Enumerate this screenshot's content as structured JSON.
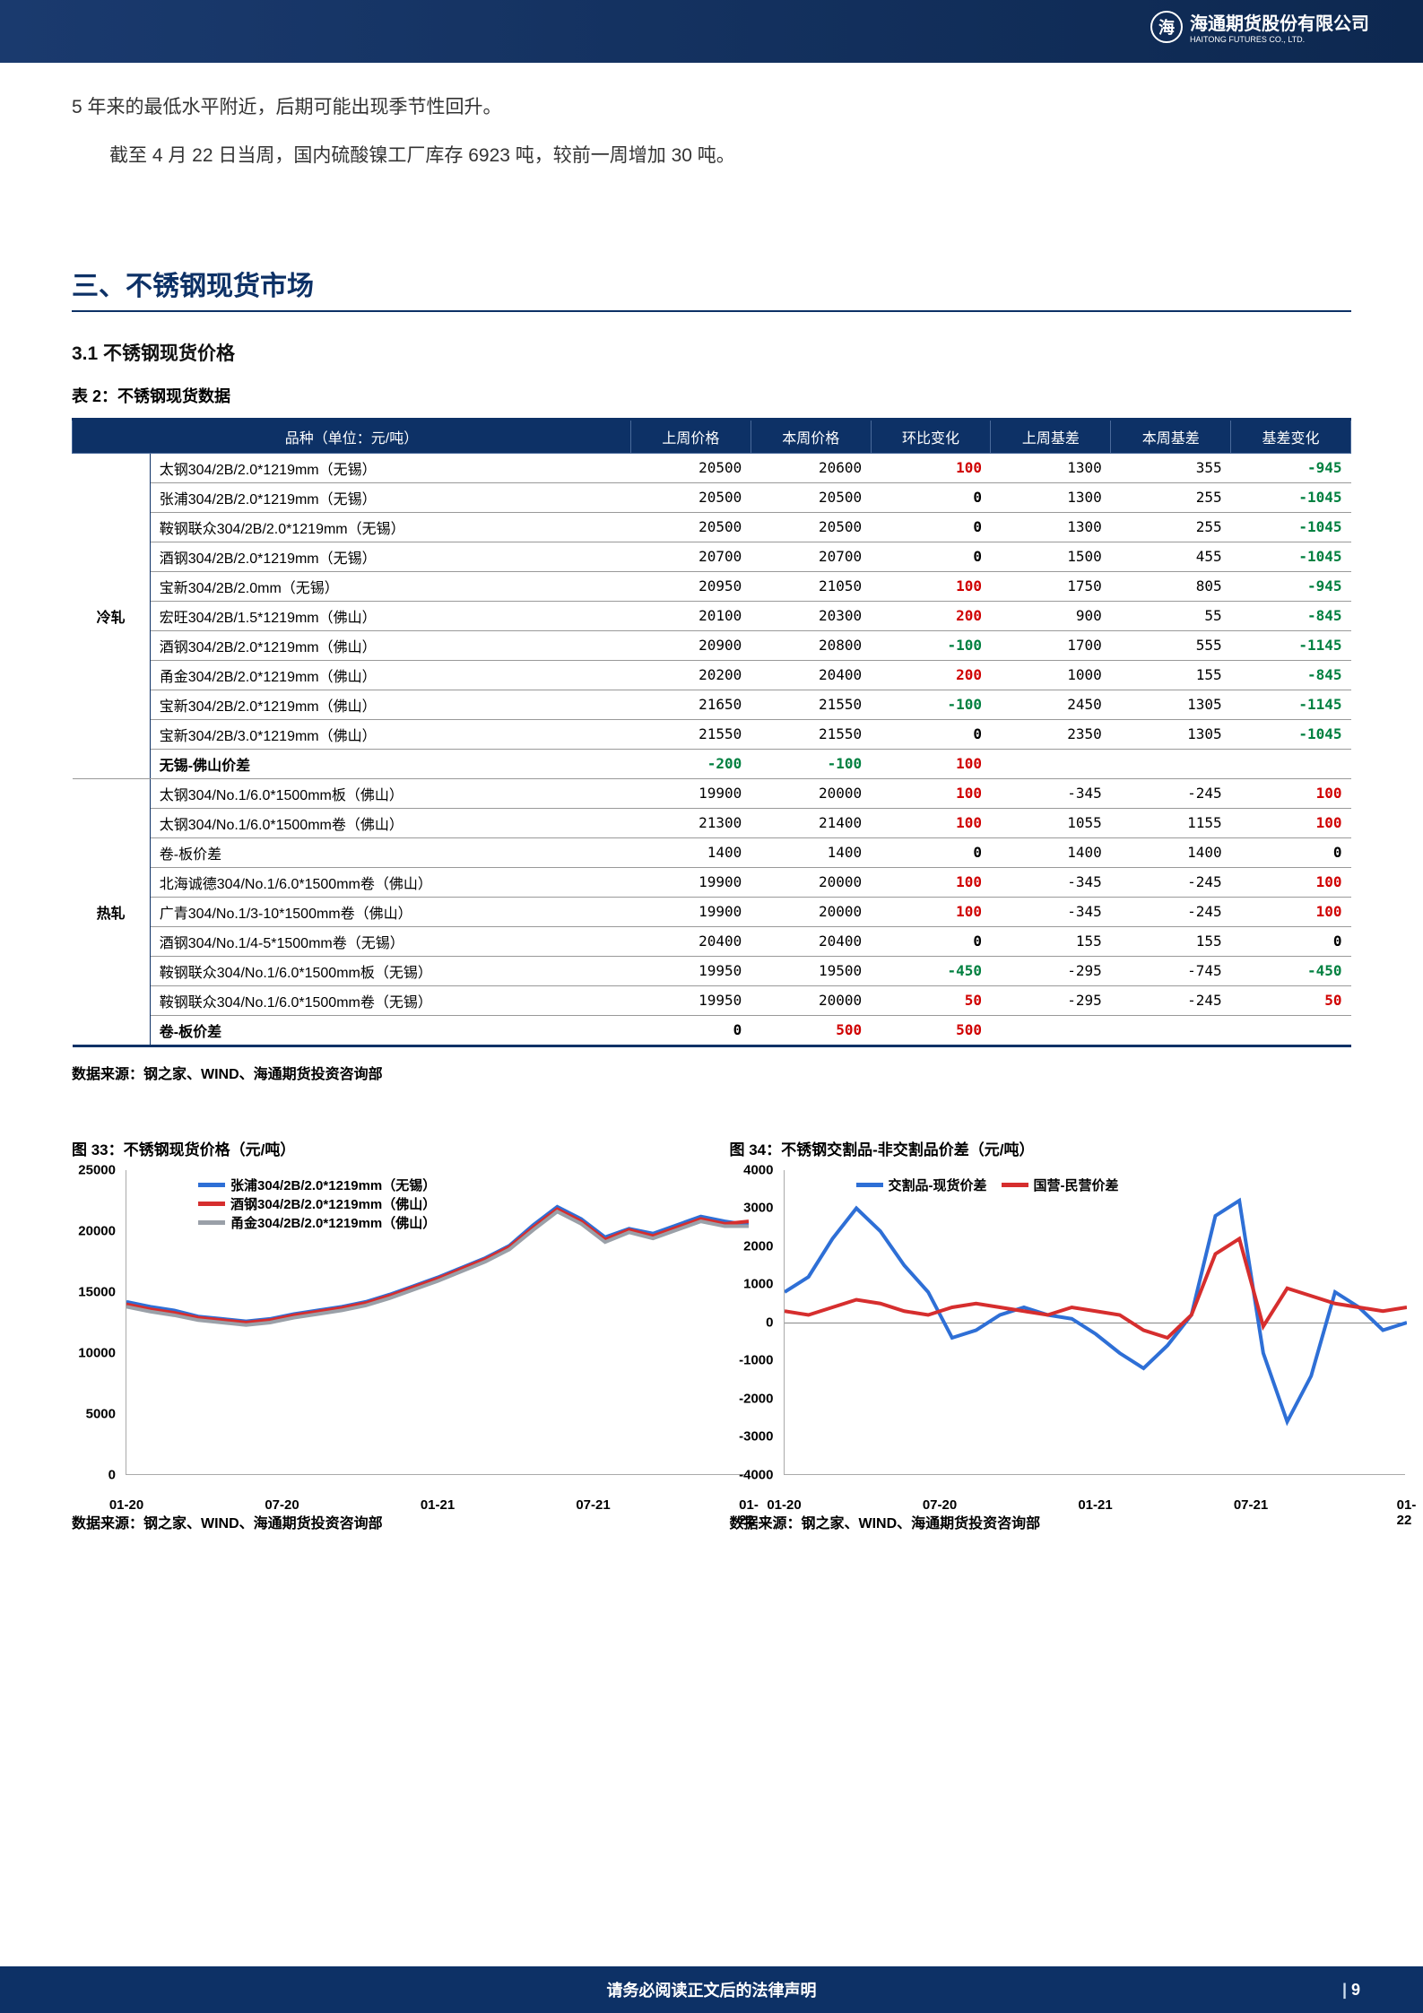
{
  "header": {
    "logo_symbol": "海",
    "company_cn": "海通期货股份有限公司",
    "company_en": "HAITONG FUTURES CO., LTD."
  },
  "paragraphs": [
    "5 年来的最低水平附近，后期可能出现季节性回升。",
    "截至 4 月 22 日当周，国内硫酸镍工厂库存 6923 吨，较前一周增加 30 吨。"
  ],
  "section_title": "三、不锈钢现货市场",
  "subsection_title": "3.1 不锈钢现货价格",
  "table_caption": "表 2：不锈钢现货数据",
  "table": {
    "headers": [
      "品种（单位：元/吨）",
      "上周价格",
      "本周价格",
      "环比变化",
      "上周基差",
      "本周基差",
      "基差变化"
    ],
    "groups": [
      {
        "label": "冷轧",
        "rows": [
          {
            "name": "太钢304/2B/2.0*1219mm（无锡）",
            "lw": 20500,
            "tw": 20600,
            "wow": 100,
            "lb": 1300,
            "tb": 355,
            "bc": -945
          },
          {
            "name": "张浦304/2B/2.0*1219mm（无锡）",
            "lw": 20500,
            "tw": 20500,
            "wow": 0,
            "lb": 1300,
            "tb": 255,
            "bc": -1045
          },
          {
            "name": "鞍钢联众304/2B/2.0*1219mm（无锡）",
            "lw": 20500,
            "tw": 20500,
            "wow": 0,
            "lb": 1300,
            "tb": 255,
            "bc": -1045
          },
          {
            "name": "酒钢304/2B/2.0*1219mm（无锡）",
            "lw": 20700,
            "tw": 20700,
            "wow": 0,
            "lb": 1500,
            "tb": 455,
            "bc": -1045
          },
          {
            "name": "宝新304/2B/2.0mm（无锡）",
            "lw": 20950,
            "tw": 21050,
            "wow": 100,
            "lb": 1750,
            "tb": 805,
            "bc": -945
          },
          {
            "name": "宏旺304/2B/1.5*1219mm（佛山）",
            "lw": 20100,
            "tw": 20300,
            "wow": 200,
            "lb": 900,
            "tb": 55,
            "bc": -845
          },
          {
            "name": "酒钢304/2B/2.0*1219mm（佛山）",
            "lw": 20900,
            "tw": 20800,
            "wow": -100,
            "lb": 1700,
            "tb": 555,
            "bc": -1145
          },
          {
            "name": "甬金304/2B/2.0*1219mm（佛山）",
            "lw": 20200,
            "tw": 20400,
            "wow": 200,
            "lb": 1000,
            "tb": 155,
            "bc": -845
          },
          {
            "name": "宝新304/2B/2.0*1219mm（佛山）",
            "lw": 21650,
            "tw": 21550,
            "wow": -100,
            "lb": 2450,
            "tb": 1305,
            "bc": -1145
          },
          {
            "name": "宝新304/2B/3.0*1219mm（佛山）",
            "lw": 21550,
            "tw": 21550,
            "wow": 0,
            "lb": 2350,
            "tb": 1305,
            "bc": -1045
          },
          {
            "name": "无锡-佛山价差",
            "lw": -200,
            "tw": -100,
            "wow": 100,
            "lb": null,
            "tb": null,
            "bc": null,
            "special": true
          }
        ]
      },
      {
        "label": "热轧",
        "rows": [
          {
            "name": "太钢304/No.1/6.0*1500mm板（佛山）",
            "lw": 19900,
            "tw": 20000,
            "wow": 100,
            "lb": -345,
            "tb": -245,
            "bc": 100
          },
          {
            "name": "太钢304/No.1/6.0*1500mm卷（佛山）",
            "lw": 21300,
            "tw": 21400,
            "wow": 100,
            "lb": 1055,
            "tb": 1155,
            "bc": 100
          },
          {
            "name": "卷-板价差",
            "lw": 1400,
            "tw": 1400,
            "wow": 0,
            "lb": 1400,
            "tb": 1400,
            "bc": 0
          },
          {
            "name": "北海诚德304/No.1/6.0*1500mm卷（佛山）",
            "lw": 19900,
            "tw": 20000,
            "wow": 100,
            "lb": -345,
            "tb": -245,
            "bc": 100
          },
          {
            "name": "广青304/No.1/3-10*1500mm卷（佛山）",
            "lw": 19900,
            "tw": 20000,
            "wow": 100,
            "lb": -345,
            "tb": -245,
            "bc": 100
          },
          {
            "name": "酒钢304/No.1/4-5*1500mm卷（无锡）",
            "lw": 20400,
            "tw": 20400,
            "wow": 0,
            "lb": 155,
            "tb": 155,
            "bc": 0
          },
          {
            "name": "鞍钢联众304/No.1/6.0*1500mm板（无锡）",
            "lw": 19950,
            "tw": 19500,
            "wow": -450,
            "lb": -295,
            "tb": -745,
            "bc": -450
          },
          {
            "name": "鞍钢联众304/No.1/6.0*1500mm卷（无锡）",
            "lw": 19950,
            "tw": 20000,
            "wow": 50,
            "lb": -295,
            "tb": -245,
            "bc": 50
          },
          {
            "name": "卷-板价差",
            "lw": 0,
            "tw": 500,
            "wow": 500,
            "lb": null,
            "tb": null,
            "bc": null,
            "special": true
          }
        ]
      }
    ]
  },
  "source_note": "数据来源：钢之家、WIND、海通期货投资咨询部",
  "chart33": {
    "title": "图 33：不锈钢现货价格（元/吨）",
    "ylim": [
      0,
      25000
    ],
    "ytick_step": 5000,
    "xlabels": [
      "01-20",
      "07-20",
      "01-21",
      "07-21",
      "01-22"
    ],
    "legend": [
      {
        "label": "张浦304/2B/2.0*1219mm（无锡）",
        "color": "#2e6fd6"
      },
      {
        "label": "酒钢304/2B/2.0*1219mm（佛山）",
        "color": "#d62e2e"
      },
      {
        "label": "甬金304/2B/2.0*1219mm（佛山）",
        "color": "#9aa0a8"
      }
    ],
    "series": {
      "blue": [
        14200,
        13800,
        13500,
        13000,
        12800,
        12600,
        12800,
        13200,
        13500,
        13800,
        14200,
        14800,
        15500,
        16200,
        17000,
        17800,
        18800,
        20500,
        22000,
        21000,
        19500,
        20200,
        19800,
        20500,
        21200,
        20800,
        20500
      ],
      "red": [
        14000,
        13600,
        13300,
        12900,
        12700,
        12500,
        12700,
        13100,
        13400,
        13700,
        14100,
        14700,
        15400,
        16100,
        16900,
        17700,
        18700,
        20300,
        21800,
        20800,
        19300,
        20100,
        19600,
        20300,
        21000,
        20600,
        20800
      ],
      "gray": [
        13800,
        13400,
        13100,
        12700,
        12500,
        12300,
        12500,
        12900,
        13200,
        13500,
        13900,
        14500,
        15200,
        15900,
        16700,
        17500,
        18500,
        20100,
        21600,
        20600,
        19100,
        19900,
        19400,
        20100,
        20800,
        20400,
        20400
      ]
    }
  },
  "chart34": {
    "title": "图 34：不锈钢交割品-非交割品价差（元/吨）",
    "ylim": [
      -4000,
      4000
    ],
    "ytick_step": 1000,
    "xlabels": [
      "01-20",
      "07-20",
      "01-21",
      "07-21",
      "01-22"
    ],
    "legend": [
      {
        "label": "交割品-现货价差",
        "color": "#2e6fd6"
      },
      {
        "label": "国营-民营价差",
        "color": "#d62e2e"
      }
    ],
    "series": {
      "blue": [
        800,
        1200,
        2200,
        3000,
        2400,
        1500,
        800,
        -400,
        -200,
        200,
        400,
        200,
        100,
        -300,
        -800,
        -1200,
        -600,
        200,
        2800,
        3200,
        -800,
        -2600,
        -1400,
        800,
        400,
        -200,
        0
      ],
      "red": [
        300,
        200,
        400,
        600,
        500,
        300,
        200,
        400,
        500,
        400,
        300,
        200,
        400,
        300,
        200,
        -200,
        -400,
        200,
        1800,
        2200,
        -100,
        900,
        700,
        500,
        400,
        300,
        400
      ]
    }
  },
  "footer": {
    "notice": "请务必阅读正文后的法律声明",
    "page_prefix": "| ",
    "page_num": "9"
  },
  "colors": {
    "primary": "#0d3166",
    "pos": "#d00000",
    "neg": "#008040"
  }
}
